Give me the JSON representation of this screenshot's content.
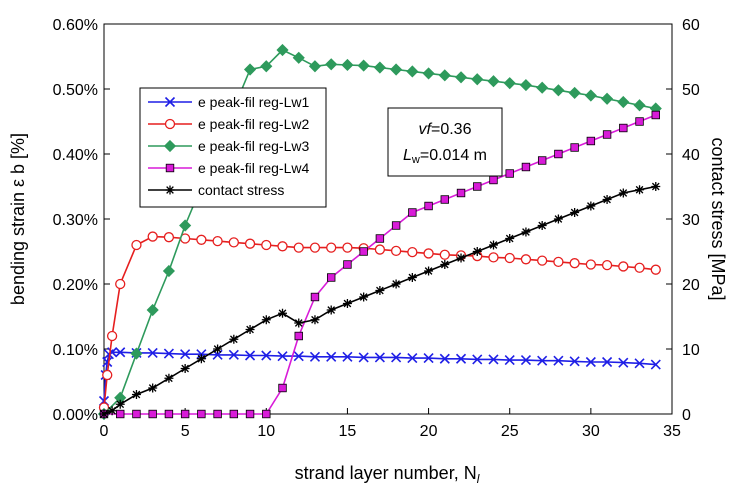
{
  "chart_data": {
    "type": "line",
    "title": "",
    "xlabel": "strand layer number, N",
    "xlabel_sub": "l",
    "ylabel": "bending strain ε b [%]",
    "y2label": "contact stress [MPa]",
    "xlim": [
      0,
      35
    ],
    "ylim": [
      0,
      0.006
    ],
    "y2lim": [
      0,
      60
    ],
    "x_ticks": [
      "0",
      "5",
      "10",
      "15",
      "20",
      "25",
      "30",
      "35"
    ],
    "y_ticks": [
      "0.00%",
      "0.10%",
      "0.20%",
      "0.30%",
      "0.40%",
      "0.50%",
      "0.60%"
    ],
    "y2_ticks": [
      "0",
      "10",
      "20",
      "30",
      "40",
      "50",
      "60"
    ],
    "grid": false,
    "legend_position": "upper-left",
    "annotation": {
      "line1_italic": "vf",
      "line1_rest": "=0.36",
      "line2_italic": "L",
      "line2_sub": "w",
      "line2_rest": "=0.014 m"
    },
    "series": [
      {
        "name": "e peak-fil reg-Lw1",
        "axis": "left",
        "color": "#1f1fe6",
        "marker": "x",
        "x": [
          0,
          0.1,
          0.2,
          0.3,
          0.5,
          1,
          2,
          3,
          4,
          5,
          6,
          7,
          8,
          9,
          10,
          11,
          12,
          13,
          14,
          15,
          16,
          17,
          18,
          19,
          20,
          21,
          22,
          23,
          24,
          25,
          26,
          27,
          28,
          29,
          30,
          31,
          32,
          33,
          34
        ],
        "y": [
          0.0002,
          0.0006,
          0.0008,
          0.00092,
          0.00095,
          0.00095,
          0.00094,
          0.00094,
          0.00093,
          0.00092,
          0.00092,
          0.00091,
          0.00091,
          0.0009,
          0.0009,
          0.00089,
          0.00089,
          0.00088,
          0.00088,
          0.00088,
          0.00087,
          0.00087,
          0.00087,
          0.00086,
          0.00086,
          0.00085,
          0.00085,
          0.00084,
          0.00084,
          0.00083,
          0.00083,
          0.00082,
          0.00082,
          0.00081,
          0.0008,
          0.0008,
          0.00079,
          0.00078,
          0.00076
        ]
      },
      {
        "name": "e peak-fil reg-Lw2",
        "axis": "left",
        "color": "#e61f1f",
        "marker": "circle",
        "x": [
          0,
          0.2,
          0.5,
          1,
          2,
          3,
          4,
          5,
          6,
          7,
          8,
          9,
          10,
          11,
          12,
          13,
          14,
          15,
          16,
          17,
          18,
          19,
          20,
          21,
          22,
          23,
          24,
          25,
          26,
          27,
          28,
          29,
          30,
          31,
          32,
          33,
          34
        ],
        "y": [
          0.0001,
          0.0006,
          0.0012,
          0.002,
          0.0026,
          0.00273,
          0.00272,
          0.0027,
          0.00268,
          0.00266,
          0.00264,
          0.00262,
          0.0026,
          0.00258,
          0.00256,
          0.00256,
          0.00256,
          0.00256,
          0.00255,
          0.00253,
          0.00251,
          0.00249,
          0.00247,
          0.00245,
          0.00244,
          0.00243,
          0.00241,
          0.0024,
          0.00238,
          0.00236,
          0.00234,
          0.00232,
          0.0023,
          0.00229,
          0.00227,
          0.00225,
          0.00222
        ]
      },
      {
        "name": "e peak-fil reg-Lw3",
        "axis": "left",
        "color": "#2e9a5c",
        "marker": "diamond",
        "x": [
          0,
          1,
          2,
          3,
          4,
          5,
          6,
          7,
          8,
          9,
          10,
          11,
          12,
          13,
          14,
          15,
          16,
          17,
          18,
          19,
          20,
          21,
          22,
          23,
          24,
          25,
          26,
          27,
          28,
          29,
          30,
          31,
          32,
          33,
          34
        ],
        "y": [
          0,
          0.00025,
          0.00093,
          0.0016,
          0.0022,
          0.0029,
          0.0035,
          0.0041,
          0.0047,
          0.0053,
          0.00535,
          0.0056,
          0.00548,
          0.00535,
          0.00538,
          0.00537,
          0.00536,
          0.00533,
          0.0053,
          0.00527,
          0.00524,
          0.00521,
          0.00518,
          0.00515,
          0.00512,
          0.00509,
          0.00506,
          0.00502,
          0.00498,
          0.00494,
          0.0049,
          0.00485,
          0.0048,
          0.00475,
          0.0047
        ]
      },
      {
        "name": "e peak-fil reg-Lw4",
        "axis": "left",
        "color": "#d81bd8",
        "marker": "square",
        "x": [
          0,
          1,
          2,
          3,
          4,
          5,
          6,
          7,
          8,
          9,
          10,
          11,
          12,
          13,
          14,
          15,
          16,
          17,
          18,
          19,
          20,
          21,
          22,
          23,
          24,
          25,
          26,
          27,
          28,
          29,
          30,
          31,
          32,
          33,
          34
        ],
        "y": [
          0,
          0,
          0,
          0,
          0,
          0,
          0,
          0,
          0,
          0,
          0,
          0.0004,
          0.0012,
          0.0018,
          0.0021,
          0.0023,
          0.0025,
          0.0027,
          0.0029,
          0.0031,
          0.0032,
          0.0033,
          0.0034,
          0.0035,
          0.0036,
          0.0037,
          0.0038,
          0.0039,
          0.004,
          0.0041,
          0.0042,
          0.0043,
          0.0044,
          0.0045,
          0.0046
        ]
      },
      {
        "name": "contact stress",
        "axis": "right",
        "color": "#000000",
        "marker": "asterisk",
        "x": [
          0,
          0.5,
          1,
          2,
          3,
          4,
          5,
          6,
          7,
          8,
          9,
          10,
          11,
          12,
          13,
          14,
          15,
          16,
          17,
          18,
          19,
          20,
          21,
          22,
          23,
          24,
          25,
          26,
          27,
          28,
          29,
          30,
          31,
          32,
          33,
          34
        ],
        "y": [
          0,
          0.5,
          1.5,
          3,
          4,
          5.5,
          7,
          8.5,
          10,
          11.5,
          13,
          14.5,
          15.5,
          14,
          14.5,
          16,
          17,
          18,
          19,
          20,
          21,
          22,
          23,
          24,
          25,
          26,
          27,
          28,
          29,
          30,
          31,
          32,
          33,
          34,
          34.5,
          35
        ]
      }
    ]
  }
}
